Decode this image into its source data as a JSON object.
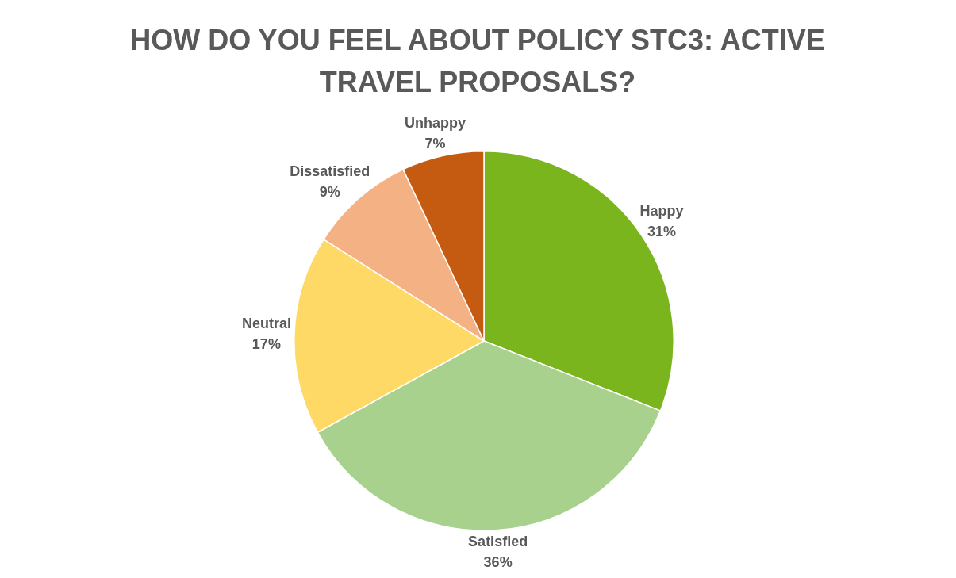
{
  "chart_data": {
    "type": "pie",
    "title": "HOW DO YOU FEEL ABOUT POLICY STC3: ACTIVE TRAVEL PROPOSALS?",
    "categories": [
      "Happy",
      "Satisfied",
      "Neutral",
      "Dissatisfied",
      "Unhappy"
    ],
    "values": [
      31,
      36,
      17,
      9,
      7
    ],
    "colors": [
      "#7ab51d",
      "#a9d18e",
      "#ffd966",
      "#f4b183",
      "#c55a11"
    ],
    "value_labels": [
      "31%",
      "36%",
      "17%",
      "9%",
      "7%"
    ],
    "legend": false
  }
}
